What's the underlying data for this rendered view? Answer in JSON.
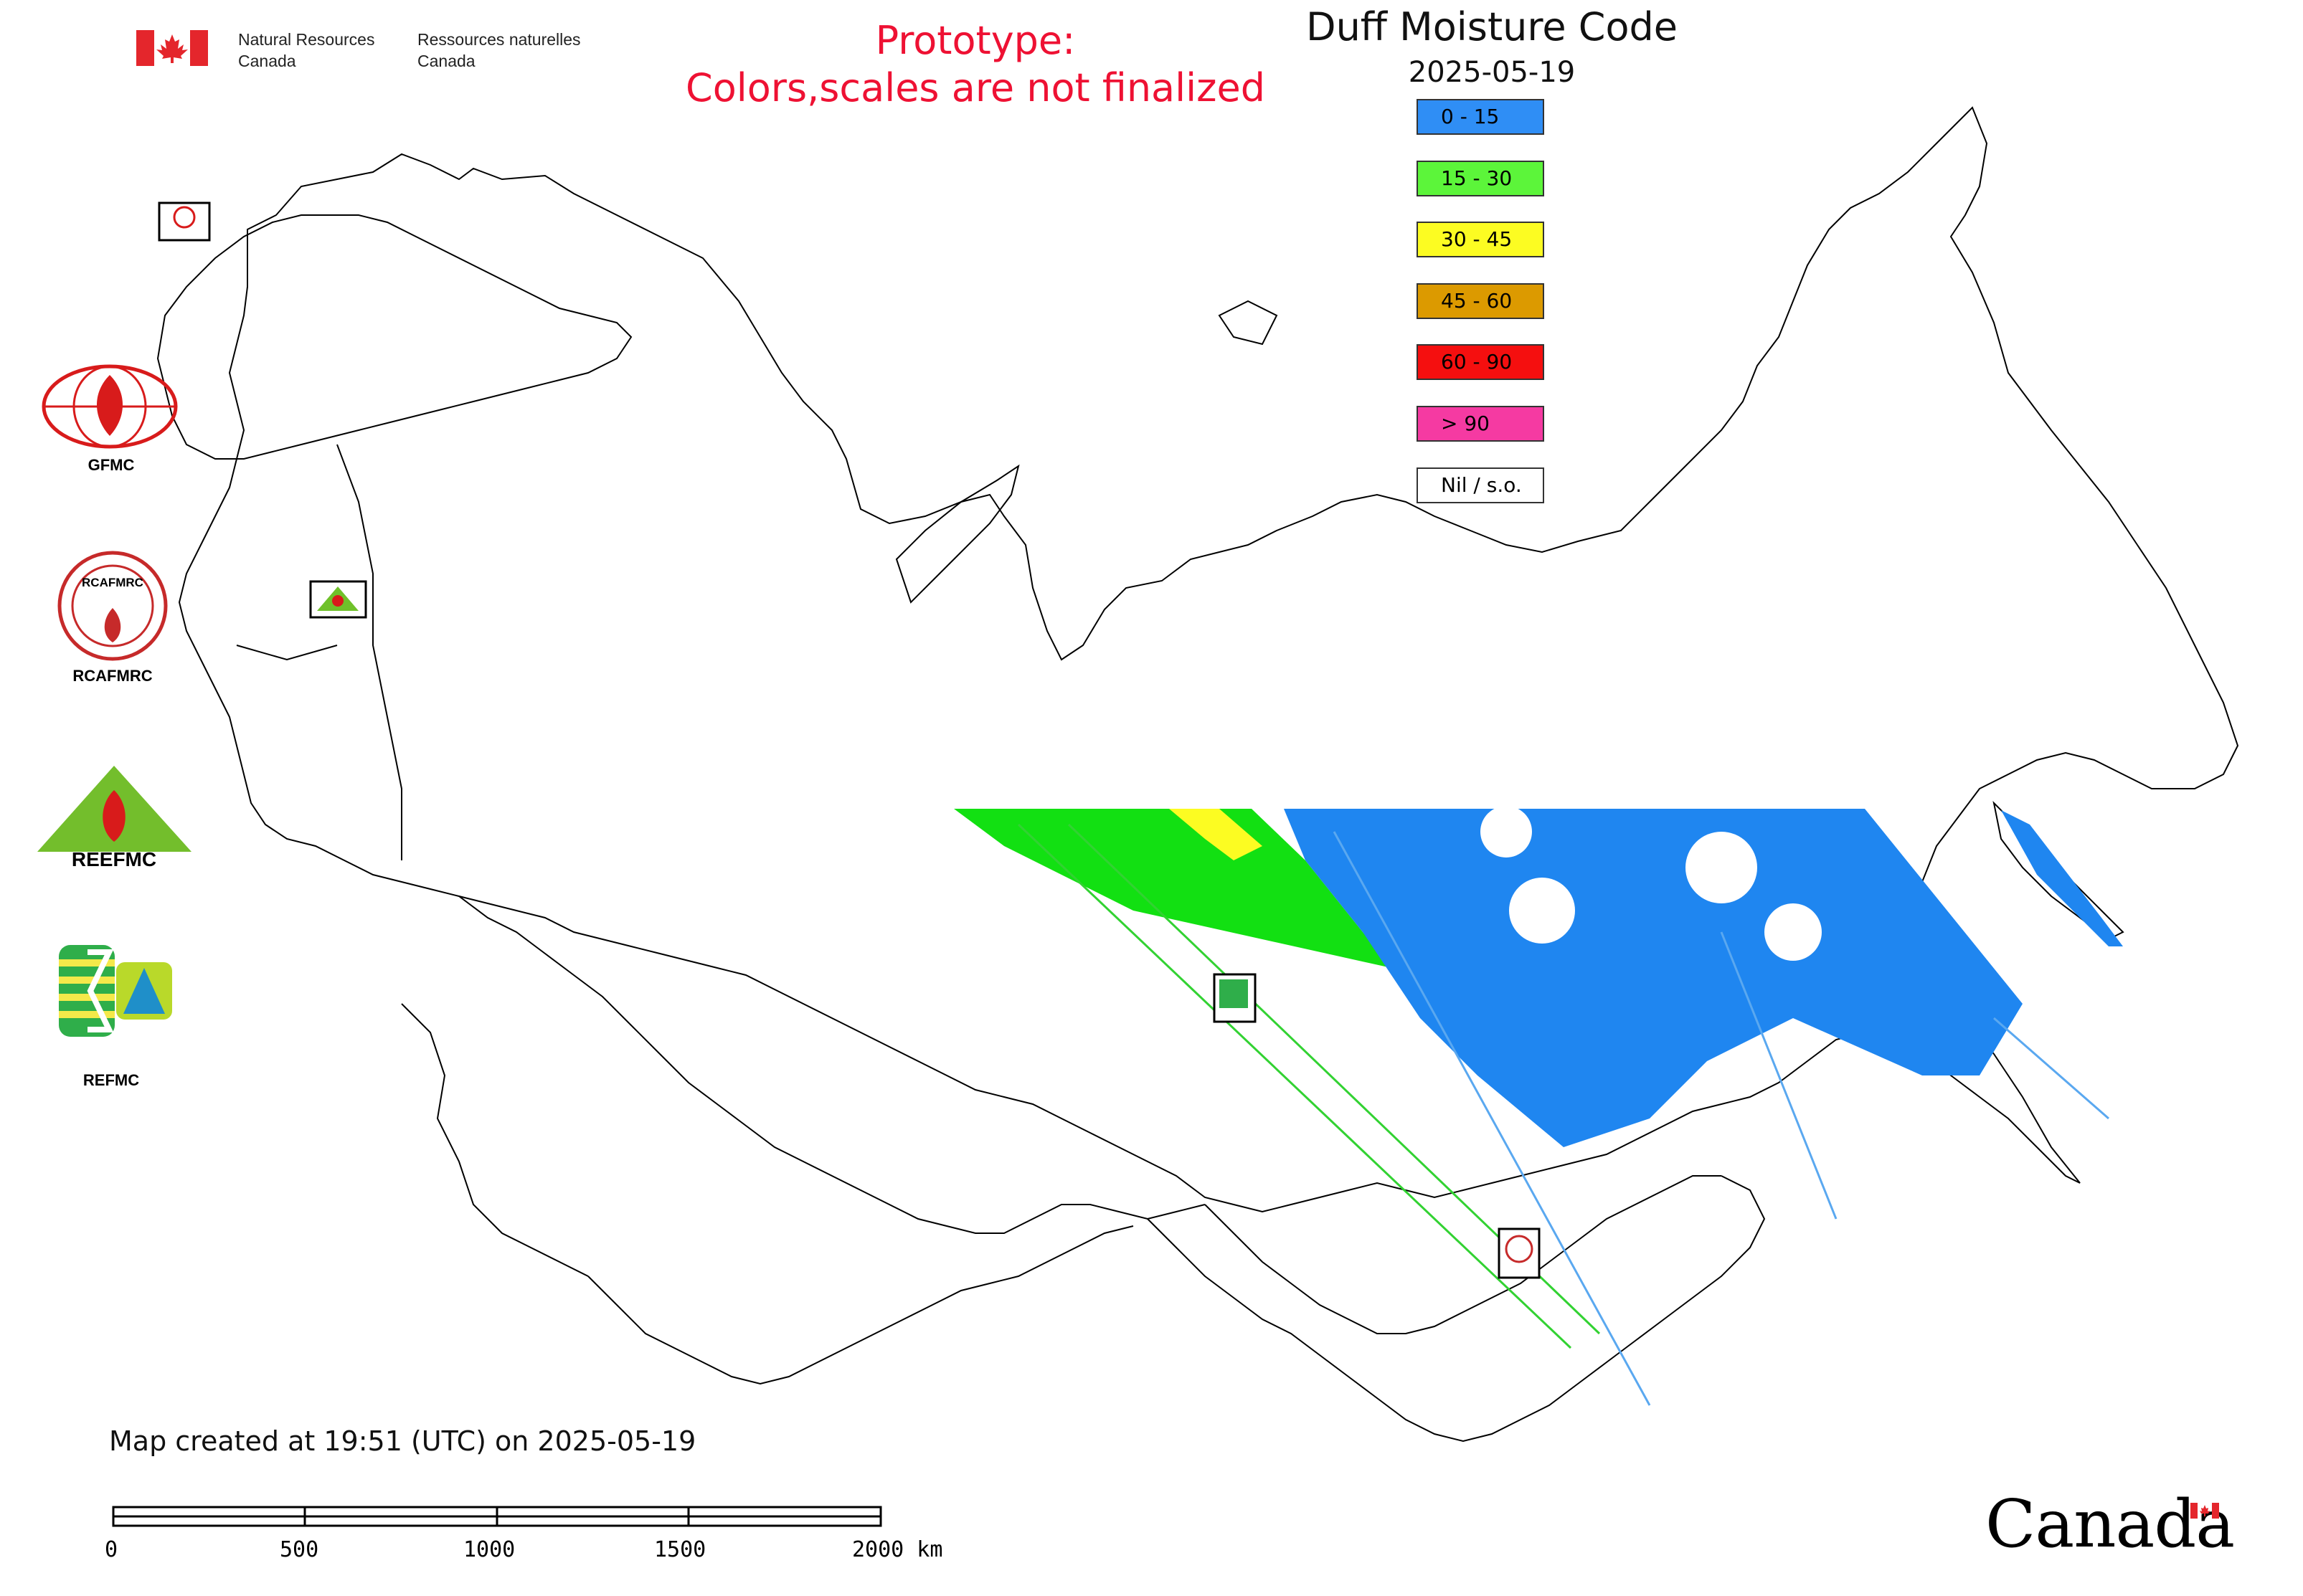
{
  "header": {
    "department_en": [
      "Natural Resources",
      "Canada"
    ],
    "department_fr": [
      "Ressources naturelles",
      "Canada"
    ],
    "prototype_notice": [
      "Prototype:",
      "Colors,scales are not finalized"
    ]
  },
  "map": {
    "title": "Duff Moisture Code",
    "date": "2025-05-19"
  },
  "legend": [
    {
      "label": "0 - 15",
      "color": "#2f8ef5"
    },
    {
      "label": "15 - 30",
      "color": "#5cf53a"
    },
    {
      "label": "30 - 45",
      "color": "#fcfc22"
    },
    {
      "label": "45 - 60",
      "color": "#dc9a00"
    },
    {
      "label": "60 - 90",
      "color": "#f50f0f"
    },
    {
      "label": "> 90",
      "color": "#f53aa2"
    },
    {
      "label": "Nil / s.o.",
      "color": "#ffffff"
    }
  ],
  "centers": [
    {
      "name": "GFMC",
      "label": "GFMC"
    },
    {
      "name": "RCAFMRC",
      "label": "RCAFMRC"
    },
    {
      "name": "REEFMC",
      "label": ""
    },
    {
      "name": "REFMC",
      "label": "REFMC"
    }
  ],
  "logo_text": {
    "rcafmrc": "RCAFMRC",
    "reefmc": "REEFMC",
    "gfmc_small": "GFMC",
    "refmc_small": "REFMC"
  },
  "footer": {
    "created": "Map created at 19:51 (UTC) on 2025-05-19",
    "scale_labels": [
      "0",
      "500",
      "1000",
      "1500",
      "2000 km"
    ]
  },
  "wordmark": "Canada"
}
